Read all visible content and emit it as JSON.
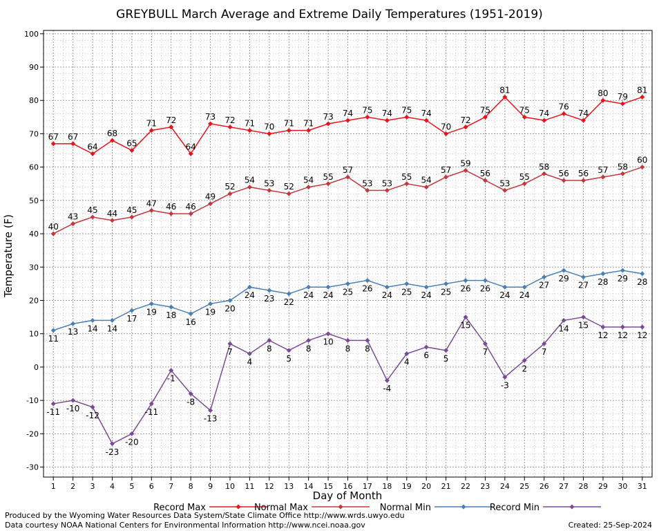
{
  "chart_data": {
    "type": "line",
    "title": "GREYBULL March Average and Extreme Daily Temperatures (1951-2019)",
    "xlabel": "Day of Month",
    "ylabel": "Temperature (F)",
    "ylim": [
      -33,
      101
    ],
    "yticks": [
      -30,
      -20,
      -10,
      0,
      10,
      20,
      30,
      40,
      50,
      60,
      70,
      80,
      90,
      100
    ],
    "x": [
      1,
      2,
      3,
      4,
      5,
      6,
      7,
      8,
      9,
      10,
      11,
      12,
      13,
      14,
      15,
      16,
      17,
      18,
      19,
      20,
      21,
      22,
      23,
      24,
      25,
      26,
      27,
      28,
      29,
      30,
      31
    ],
    "grid": true,
    "legend_position": "bottom",
    "series": [
      {
        "name": "Record Max",
        "color": "#e8141c",
        "label_side": "above",
        "values": [
          67,
          67,
          64,
          68,
          65,
          71,
          72,
          64,
          73,
          72,
          71,
          70,
          71,
          71,
          73,
          74,
          75,
          74,
          75,
          74,
          70,
          72,
          75,
          81,
          75,
          74,
          76,
          74,
          80,
          79,
          81
        ]
      },
      {
        "name": "Normal Max",
        "color": "#c0393e",
        "label_side": "above",
        "values": [
          40,
          43,
          45,
          44,
          45,
          47,
          46,
          46,
          49,
          52,
          54,
          53,
          52,
          54,
          55,
          57,
          53,
          53,
          55,
          54,
          57,
          59,
          56,
          53,
          55,
          58,
          56,
          56,
          57,
          58,
          60
        ]
      },
      {
        "name": "Normal Min",
        "color": "#4a7fb5",
        "label_side": "below",
        "values": [
          11,
          13,
          14,
          14,
          17,
          19,
          18,
          16,
          19,
          20,
          24,
          23,
          22,
          24,
          24,
          25,
          26,
          24,
          25,
          24,
          25,
          26,
          26,
          24,
          24,
          27,
          29,
          27,
          28,
          29,
          28
        ]
      },
      {
        "name": "Record Min",
        "color": "#7b4a96",
        "label_side": "below",
        "values": [
          -11,
          -10,
          -12,
          -23,
          -20,
          -11,
          -1,
          -8,
          -13,
          7,
          4,
          8,
          5,
          8,
          10,
          8,
          8,
          -4,
          4,
          6,
          5,
          15,
          7,
          -3,
          2,
          7,
          14,
          15,
          12,
          12,
          12
        ]
      }
    ]
  },
  "footer": {
    "line1": "Produced by the Wyoming Water Resources Data System/State Climate Office http://www.wrds.uwyo.edu",
    "line2": "Data courtesy NOAA National Centers for Environmental Information http://www.ncei.noaa.gov",
    "created": "Created:  25-Sep-2024"
  }
}
